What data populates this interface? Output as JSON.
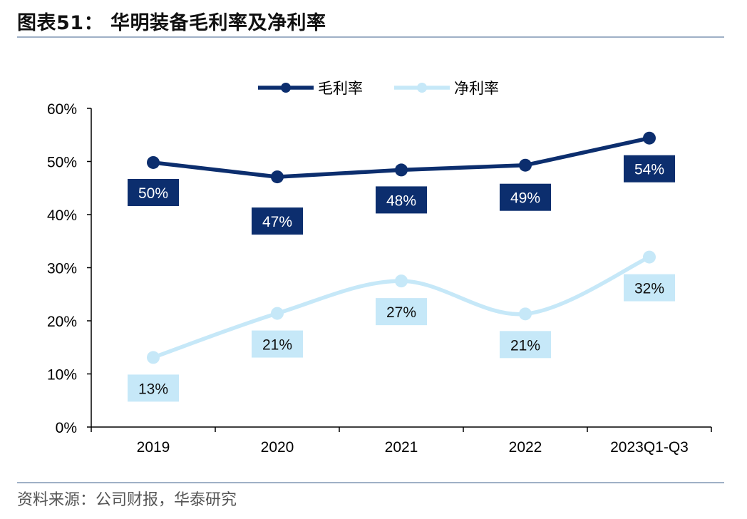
{
  "header": {
    "title": "图表51：  华明装备毛利率及净利率"
  },
  "footer": {
    "source": "资料来源：公司财报，华泰研究"
  },
  "chart_data": {
    "type": "line",
    "categories": [
      "2019",
      "2020",
      "2021",
      "2022",
      "2023Q1-Q3"
    ],
    "series": [
      {
        "name": "毛利率",
        "values": [
          49.8,
          47.1,
          48.4,
          49.3,
          54.4
        ],
        "labels": [
          "50%",
          "47%",
          "48%",
          "49%",
          "54%"
        ],
        "color": "#0c2e6e",
        "smooth": false
      },
      {
        "name": "净利率",
        "values": [
          13.1,
          21.4,
          27.5,
          21.3,
          32.0
        ],
        "labels": [
          "13%",
          "21%",
          "27%",
          "21%",
          "32%"
        ],
        "color": "#c6e8f8",
        "smooth": true
      }
    ],
    "ylim": [
      0,
      60
    ],
    "yticks": [
      "0%",
      "10%",
      "20%",
      "30%",
      "40%",
      "50%",
      "60%"
    ],
    "legend_position": "top-center",
    "grid": false
  }
}
